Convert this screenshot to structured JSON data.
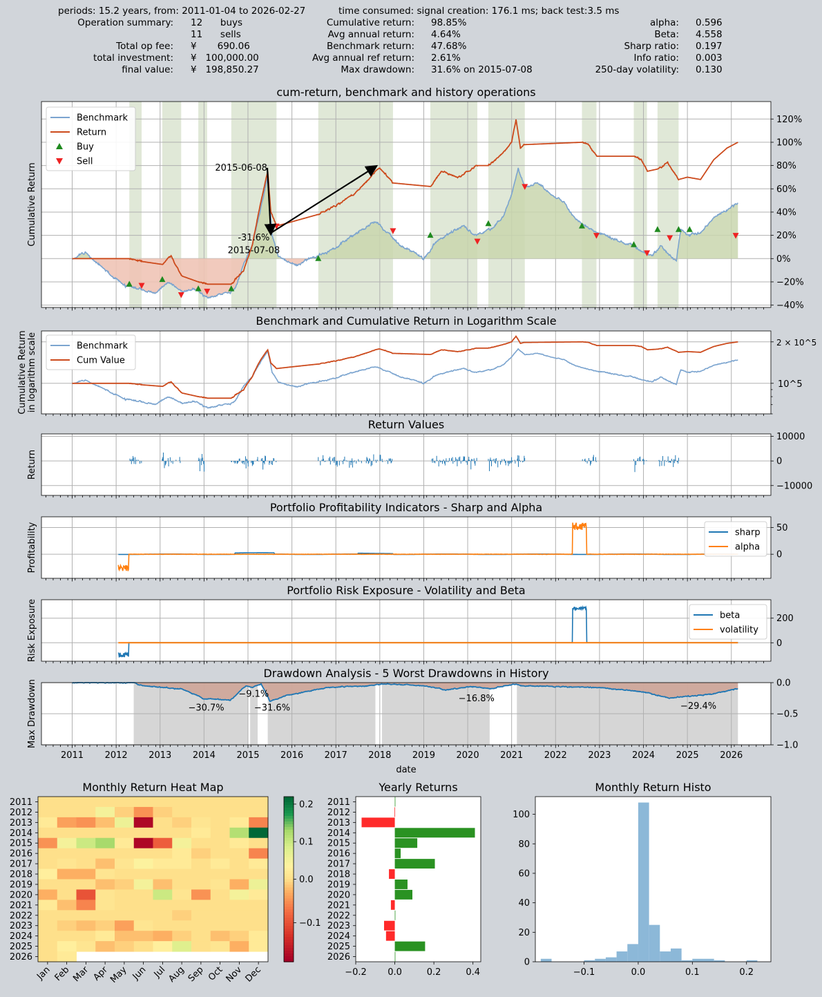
{
  "header": {
    "periods_line": "periods: 15.2 years, from: 2011-01-04 to 2026-02-27",
    "time_line": "time consumed:   signal creation: 176.1 ms;  back test:3.5 ms"
  },
  "summary_left": [
    {
      "label": "Operation summary:",
      "value": "12      buys"
    },
    {
      "label": "",
      "value": "11      sells"
    },
    {
      "label": "Total op fee:",
      "value": "¥       690.06"
    },
    {
      "label": "total investment:",
      "value": "¥   100,000.00"
    },
    {
      "label": "final value:",
      "value": "¥   198,850.27"
    }
  ],
  "summary_mid": [
    {
      "label": "Cumulative return:",
      "value": "98.85%"
    },
    {
      "label": "Avg annual return:",
      "value": "4.64%"
    },
    {
      "label": "Benchmark return:",
      "value": "47.68%"
    },
    {
      "label": "Avg annual ref return:",
      "value": "2.61%"
    },
    {
      "label": "Max drawdown:",
      "value": "31.6% on 2015-07-08"
    }
  ],
  "summary_right": [
    {
      "label": "alpha:",
      "value": "0.596"
    },
    {
      "label": "Beta:",
      "value": "4.558"
    },
    {
      "label": "Sharp ratio:",
      "value": "0.197"
    },
    {
      "label": "Info ratio:",
      "value": "0.003"
    },
    {
      "label": "250-day volatility:",
      "value": "0.130"
    }
  ],
  "colors": {
    "benchmark": "#7ba4cf",
    "return": "#cc4a1c",
    "buy": "#1f8a1f",
    "sell": "#ee2222",
    "hold_band": "#e0e8d7",
    "loss_fill": "#efc4b6",
    "gain_fill": "#c9d6ae",
    "blue": "#1f77b4",
    "orange": "#ff7f0e",
    "drawdown_fill": "#cfa89b",
    "dd_band": "#d6d6d6",
    "bar_pos": "#2a9222",
    "bar_neg": "#ff2a2a",
    "hist": "#8cb8d8"
  },
  "chart_data": [
    {
      "type": "line",
      "id": "cum",
      "title": "cum-return, benchmark and history operations",
      "ylabel": "Cumulative Return",
      "xlim": [
        2010.3,
        2026.9
      ],
      "ylim": [
        -0.42,
        1.35
      ],
      "yticks": [
        -0.4,
        -0.2,
        0,
        0.2,
        0.4,
        0.6,
        0.8,
        1.0,
        1.2
      ],
      "yticklabels": [
        "−40%",
        "−20%",
        "0%",
        "20%",
        "40%",
        "60%",
        "80%",
        "100%",
        "120%"
      ],
      "legend": [
        {
          "name": "Benchmark",
          "kind": "line",
          "color": "#7ba4cf"
        },
        {
          "name": "Return",
          "kind": "line",
          "color": "#cc4a1c"
        },
        {
          "name": "Buy",
          "kind": "marker-up",
          "color": "#1f8a1f"
        },
        {
          "name": "Sell",
          "kind": "marker-down",
          "color": "#ee2222"
        }
      ],
      "hold_periods": [
        [
          2012.3,
          2012.58
        ],
        [
          2013.05,
          2013.48
        ],
        [
          2013.87,
          2014.07
        ],
        [
          2014.62,
          2015.65
        ],
        [
          2016.6,
          2018.3
        ],
        [
          2019.15,
          2020.22
        ],
        [
          2020.47,
          2021.3
        ],
        [
          2022.6,
          2022.93
        ],
        [
          2023.78,
          2024.08
        ],
        [
          2024.32,
          2024.8
        ]
      ],
      "benchmark": {
        "x": [
          2011.0,
          2011.3,
          2011.6,
          2011.9,
          2012.2,
          2012.5,
          2012.9,
          2013.2,
          2013.5,
          2013.8,
          2014.1,
          2014.4,
          2014.7,
          2014.9,
          2015.1,
          2015.3,
          2015.45,
          2015.55,
          2015.7,
          2015.9,
          2016.1,
          2016.4,
          2016.8,
          2017.2,
          2017.6,
          2017.9,
          2018.2,
          2018.5,
          2018.8,
          2019.0,
          2019.3,
          2019.6,
          2019.9,
          2020.2,
          2020.5,
          2020.8,
          2021.0,
          2021.15,
          2021.3,
          2021.6,
          2021.9,
          2022.2,
          2022.5,
          2022.8,
          2023.1,
          2023.4,
          2023.7,
          2024.0,
          2024.2,
          2024.4,
          2024.6,
          2024.75,
          2024.85,
          2025.0,
          2025.3,
          2025.6,
          2025.9,
          2026.15
        ],
        "y": [
          0.0,
          0.05,
          -0.05,
          -0.15,
          -0.23,
          -0.26,
          -0.3,
          -0.2,
          -0.28,
          -0.27,
          -0.33,
          -0.3,
          -0.27,
          -0.05,
          0.12,
          0.45,
          0.7,
          0.2,
          0.02,
          -0.02,
          -0.06,
          0.0,
          0.05,
          0.15,
          0.25,
          0.32,
          0.22,
          0.1,
          0.05,
          0.0,
          0.15,
          0.22,
          0.28,
          0.2,
          0.25,
          0.35,
          0.55,
          0.78,
          0.62,
          0.65,
          0.55,
          0.48,
          0.32,
          0.25,
          0.2,
          0.15,
          0.12,
          0.05,
          0.02,
          0.12,
          0.03,
          -0.02,
          0.25,
          0.2,
          0.22,
          0.35,
          0.42,
          0.48
        ]
      },
      "return": {
        "x": [
          2011.0,
          2012.3,
          2012.5,
          2013.05,
          2013.25,
          2013.5,
          2013.87,
          2014.07,
          2014.62,
          2014.9,
          2015.1,
          2015.3,
          2015.45,
          2015.52,
          2015.65,
          2016.6,
          2017.0,
          2017.4,
          2017.8,
          2018.0,
          2018.3,
          2019.15,
          2019.4,
          2019.8,
          2020.2,
          2020.47,
          2020.8,
          2021.0,
          2021.1,
          2021.2,
          2021.3,
          2022.6,
          2022.75,
          2022.93,
          2023.78,
          2023.95,
          2024.08,
          2024.32,
          2024.55,
          2024.8,
          2025.0,
          2025.3,
          2025.6,
          2025.9,
          2026.15
        ],
        "y": [
          0.0,
          0.0,
          -0.02,
          -0.05,
          0.02,
          -0.15,
          -0.2,
          -0.22,
          -0.22,
          -0.1,
          0.12,
          0.5,
          0.75,
          0.4,
          0.28,
          0.38,
          0.45,
          0.55,
          0.7,
          0.78,
          0.65,
          0.62,
          0.75,
          0.7,
          0.8,
          0.8,
          0.9,
          1.0,
          1.2,
          0.95,
          0.98,
          1.0,
          0.98,
          0.88,
          0.88,
          0.85,
          0.75,
          0.77,
          0.82,
          0.68,
          0.7,
          0.68,
          0.85,
          0.95,
          1.0
        ]
      },
      "buys": [
        [
          2012.3,
          -0.22
        ],
        [
          2013.05,
          -0.18
        ],
        [
          2013.87,
          -0.26
        ],
        [
          2014.62,
          -0.26
        ],
        [
          2016.6,
          0.0
        ],
        [
          2019.15,
          0.2
        ],
        [
          2020.47,
          0.3
        ],
        [
          2022.6,
          0.28
        ],
        [
          2023.78,
          0.12
        ],
        [
          2024.32,
          0.25
        ],
        [
          2024.8,
          0.25
        ],
        [
          2025.05,
          0.25
        ]
      ],
      "sells": [
        [
          2012.58,
          -0.23
        ],
        [
          2013.48,
          -0.31
        ],
        [
          2014.07,
          -0.28
        ],
        [
          2015.65,
          0.28
        ],
        [
          2018.3,
          0.24
        ],
        [
          2020.22,
          0.15
        ],
        [
          2021.3,
          0.62
        ],
        [
          2022.93,
          0.2
        ],
        [
          2024.08,
          0.05
        ],
        [
          2024.6,
          0.18
        ],
        [
          2026.1,
          0.2
        ]
      ],
      "annotations": [
        {
          "text": "2015-06-08",
          "x": 2015.44,
          "y": 0.78
        },
        {
          "text": "-31.6%",
          "x": 2015.1,
          "y": 0.18
        },
        {
          "text": "2015-07-08",
          "x": 2015.1,
          "y": 0.07
        }
      ]
    },
    {
      "type": "line",
      "id": "log",
      "title": "Benchmark and Cumulative Return in Logarithm Scale",
      "ylabel": "Cumulative Return",
      "ylabel2": "in logarithm scale",
      "yscale": "log",
      "ylim": [
        60000,
        240000
      ],
      "yticks": [
        100000,
        200000
      ],
      "yticklabels": [
        "10^5",
        "2 × 10^5"
      ],
      "legend": [
        {
          "name": "Benchmark",
          "color": "#7ba4cf"
        },
        {
          "name": "Cum Value",
          "color": "#cc4a1c"
        }
      ]
    },
    {
      "type": "bar",
      "id": "retvals",
      "title": "Return Values",
      "ylabel": "Return",
      "ylim": [
        -14000,
        11000
      ],
      "yticks": [
        -10000,
        0,
        10000
      ],
      "yticklabels": [
        "−10000",
        "0",
        "10000"
      ]
    },
    {
      "type": "line",
      "id": "sharp",
      "title": "Portfolio Profitability Indicators - Sharp and Alpha",
      "ylabel": "Profitability",
      "ylim": [
        -45,
        70
      ],
      "yticks": [
        0,
        50
      ],
      "yticklabels": [
        "0",
        "50"
      ],
      "legend": [
        {
          "name": "sharp",
          "color": "#1f77b4"
        },
        {
          "name": "alpha",
          "color": "#ff7f0e"
        }
      ]
    },
    {
      "type": "line",
      "id": "beta",
      "title": "Portfolio Risk Exposure - Volatility and Beta",
      "ylabel": "Risk Exposure",
      "ylim": [
        -150,
        350
      ],
      "yticks": [
        0,
        200
      ],
      "yticklabels": [
        "0",
        "200"
      ],
      "legend": [
        {
          "name": "beta",
          "color": "#1f77b4"
        },
        {
          "name": "volatility",
          "color": "#ff7f0e"
        }
      ]
    },
    {
      "type": "area",
      "id": "dd",
      "title": "Drawdown Analysis - 5 Worst Drawdowns in History",
      "ylabel": "Max Drawdown",
      "xlabel": "date",
      "ylim": [
        -1.0,
        0.0
      ],
      "yticks": [
        -1.0,
        -0.5,
        0.0
      ],
      "yticklabels": [
        "−1.0",
        "−0.5",
        "0.0"
      ],
      "xticks": [
        2011,
        2012,
        2013,
        2014,
        2015,
        2016,
        2017,
        2018,
        2019,
        2020,
        2021,
        2022,
        2023,
        2024,
        2025,
        2026
      ],
      "bands": [
        [
          2012.4,
          2015.0
        ],
        [
          2015.05,
          2015.22
        ],
        [
          2015.45,
          2017.9
        ],
        [
          2018.05,
          2020.5
        ],
        [
          2021.12,
          2026.15
        ]
      ],
      "labels": [
        {
          "text": "−30.7%",
          "x": 2014.05,
          "y": -0.45
        },
        {
          "text": "−9.1%",
          "x": 2015.13,
          "y": -0.23
        },
        {
          "text": "−31.6%",
          "x": 2015.55,
          "y": -0.45
        },
        {
          "text": "−16.8%",
          "x": 2020.2,
          "y": -0.3
        },
        {
          "text": "−29.4%",
          "x": 2025.25,
          "y": -0.42
        }
      ]
    },
    {
      "type": "heatmap",
      "id": "heat",
      "title": "Monthly Return Heat Map",
      "rows": [
        "2011",
        "2012",
        "2013",
        "2014",
        "2015",
        "2016",
        "2017",
        "2018",
        "2019",
        "2020",
        "2021",
        "2022",
        "2023",
        "2024",
        "2025",
        "2026"
      ],
      "cols": [
        "Jan",
        "Feb",
        "Mar",
        "Apr",
        "May",
        "Jun",
        "Jul",
        "Aug",
        "Sep",
        "Oct",
        "Nov",
        "Dec"
      ],
      "values": [
        [
          0,
          0,
          0,
          0,
          0,
          0,
          0,
          0,
          0,
          0,
          0,
          0
        ],
        [
          0,
          0,
          0,
          0.05,
          -0.01,
          -0.05,
          -0.01,
          0,
          0,
          0,
          0,
          0
        ],
        [
          0.02,
          -0.04,
          -0.05,
          -0.02,
          0.06,
          -0.18,
          0,
          -0.01,
          0.01,
          0,
          0.02,
          -0.06
        ],
        [
          0,
          0,
          0,
          0,
          0,
          0,
          0,
          0,
          0.02,
          0,
          0.12,
          0.22
        ],
        [
          -0.05,
          0.05,
          0.1,
          0.13,
          0.02,
          -0.18,
          -0.09,
          0.05,
          0,
          0,
          0.02,
          0
        ],
        [
          0,
          0,
          0,
          0,
          0,
          0,
          0,
          0.02,
          -0.01,
          0,
          0,
          -0.06
        ],
        [
          0,
          0.01,
          0,
          -0.02,
          0.01,
          0.04,
          0.02,
          0.02,
          0,
          0.02,
          0,
          0.02
        ],
        [
          0.03,
          -0.03,
          -0.03,
          0.01,
          0,
          0,
          0,
          0,
          0,
          0,
          0,
          0
        ],
        [
          0,
          0,
          0,
          -0.02,
          -0.01,
          0.05,
          -0.02,
          0,
          0,
          0.01,
          -0.03,
          0.06
        ],
        [
          -0.03,
          0,
          -0.1,
          0.01,
          0,
          0,
          0.1,
          0.01,
          -0.05,
          0,
          0.05,
          0.02
        ],
        [
          0.02,
          -0.02,
          -0.06,
          0.01,
          0,
          0,
          0,
          0,
          0,
          0,
          0,
          0
        ],
        [
          0,
          0,
          0,
          0,
          0,
          0,
          0,
          -0.01,
          0,
          0,
          0,
          0
        ],
        [
          0,
          -0.01,
          -0.02,
          -0.01,
          -0.04,
          0.01,
          0,
          0,
          0,
          0,
          0,
          0
        ],
        [
          0,
          0,
          0,
          0.02,
          -0.02,
          -0.02,
          -0.03,
          -0.01,
          0,
          -0.02,
          -0.01,
          0.02
        ],
        [
          0,
          0.03,
          0.01,
          -0.02,
          -0.01,
          0,
          0.03,
          0.08,
          0,
          0.01,
          -0.03,
          0.02
        ],
        [
          0,
          0.02,
          null,
          null,
          null,
          null,
          null,
          null,
          null,
          null,
          null,
          null
        ]
      ],
      "vmin": -0.19,
      "vmax": 0.22,
      "cbar_ticks": [
        -0.1,
        0.0,
        0.1,
        0.2
      ],
      "cbar_ticklabels": [
        "−0.1",
        "0.0",
        "0.1",
        "0.2"
      ]
    },
    {
      "type": "bar",
      "id": "yearly",
      "title": "Yearly Returns",
      "orientation": "horizontal",
      "categories": [
        "2011",
        "2012",
        "2013",
        "2014",
        "2015",
        "2016",
        "2017",
        "2018",
        "2019",
        "2020",
        "2021",
        "2022",
        "2023",
        "2024",
        "2025",
        "2026"
      ],
      "values": [
        0.0,
        -0.002,
        -0.17,
        0.41,
        0.115,
        0.03,
        0.205,
        -0.03,
        0.065,
        0.09,
        -0.02,
        0.0,
        -0.055,
        -0.045,
        0.155,
        0.0
      ],
      "xlim": [
        -0.2,
        0.44
      ],
      "xticks": [
        -0.2,
        0.0,
        0.2,
        0.4
      ],
      "xticklabels": [
        "−0.2",
        "0.0",
        "0.2",
        "0.4"
      ]
    },
    {
      "type": "bar",
      "id": "histo",
      "title": "Monthly Return Histo",
      "bins": [
        -0.18,
        -0.16,
        -0.14,
        -0.12,
        -0.1,
        -0.08,
        -0.06,
        -0.04,
        -0.02,
        0.0,
        0.02,
        0.04,
        0.06,
        0.08,
        0.1,
        0.12,
        0.14,
        0.16,
        0.18,
        0.2,
        0.22,
        0.24
      ],
      "counts": [
        2,
        0,
        0,
        0,
        1,
        2,
        3,
        7,
        12,
        108,
        25,
        7,
        9,
        1,
        2,
        2,
        1,
        0,
        0,
        1,
        0
      ],
      "xlim": [
        -0.19,
        0.245
      ],
      "ylim": [
        0,
        112
      ],
      "xticks": [
        -0.1,
        0.0,
        0.1,
        0.2
      ],
      "xticklabels": [
        "−0.1",
        "0.0",
        "0.1",
        "0.2"
      ],
      "yticks": [
        0,
        20,
        40,
        60,
        80,
        100
      ],
      "yticklabels": [
        "0",
        "20",
        "40",
        "60",
        "80",
        "100"
      ]
    }
  ]
}
